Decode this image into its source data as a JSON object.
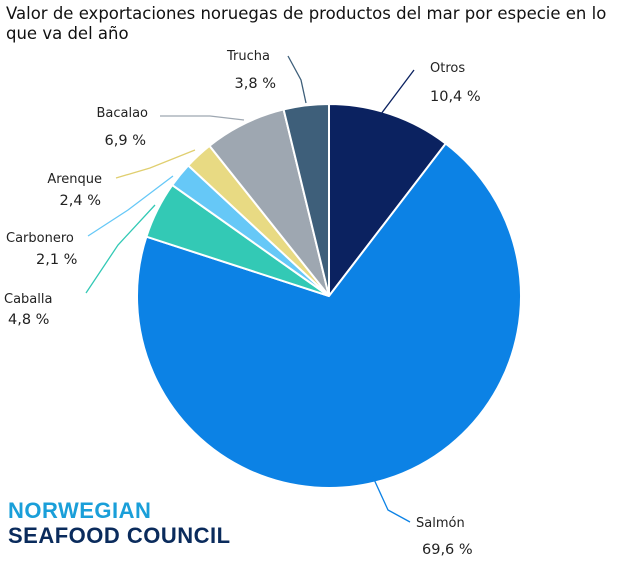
{
  "chart_data": {
    "type": "pie",
    "title": "Valor de exportaciones noruegas de productos del mar por especie en lo que va del año",
    "slices": [
      {
        "label": "Otros",
        "value": 10.4,
        "pct_text": "10,4 %",
        "color": "#0b2260",
        "line": "#0b2260"
      },
      {
        "label": "Salmón",
        "value": 69.6,
        "pct_text": "69,6 %",
        "color": "#0c82e5",
        "line": "#0c82e5"
      },
      {
        "label": "Caballa",
        "value": 4.8,
        "pct_text": "4,8 %",
        "color": "#33c9b5",
        "line": "#33c9b5"
      },
      {
        "label": "Carbonero",
        "value": 2.1,
        "pct_text": "2,1 %",
        "color": "#66c8f7",
        "line": "#66c8f7"
      },
      {
        "label": "Arenque",
        "value": 2.4,
        "pct_text": "2,4 %",
        "color": "#e8da83",
        "line": "#e0cf70"
      },
      {
        "label": "Bacalao",
        "value": 6.9,
        "pct_text": "6,9 %",
        "color": "#9ea7b1",
        "line": "#9ea7b1"
      },
      {
        "label": "Trucha",
        "value": 3.8,
        "pct_text": "3,8 %",
        "color": "#3e5f7a",
        "line": "#3e5f7a"
      }
    ]
  },
  "logo": {
    "line1": "NORWEGIAN",
    "line2": "SEAFOOD COUNCIL"
  }
}
